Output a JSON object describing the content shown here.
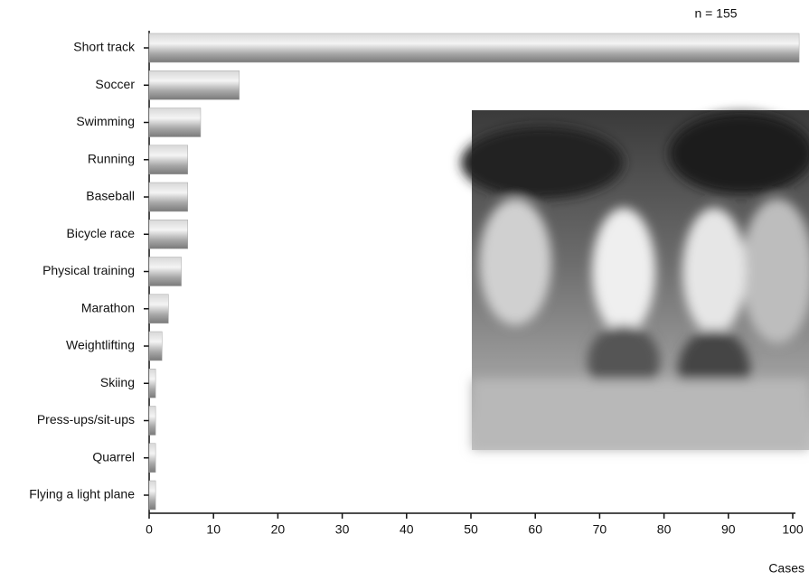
{
  "chart_data": {
    "type": "bar",
    "orientation": "horizontal",
    "annotation": "n = 155",
    "x_label": "Cases",
    "categories": [
      "Short track",
      "Soccer",
      "Swimming",
      "Running",
      "Baseball",
      "Bicycle race",
      "Physical training",
      "Marathon",
      "Weightlifting",
      "Skiing",
      "Press-ups/sit-ups",
      "Quarrel",
      "Flying a light plane"
    ],
    "values": [
      101,
      14,
      8,
      6,
      6,
      6,
      5,
      3,
      2,
      1,
      1,
      1,
      1
    ],
    "color": "#a8a8a8",
    "xlim": [
      0,
      100
    ],
    "xticks": [
      0,
      10,
      20,
      30,
      40,
      50,
      60,
      70,
      80,
      90,
      100
    ],
    "grid": false
  }
}
